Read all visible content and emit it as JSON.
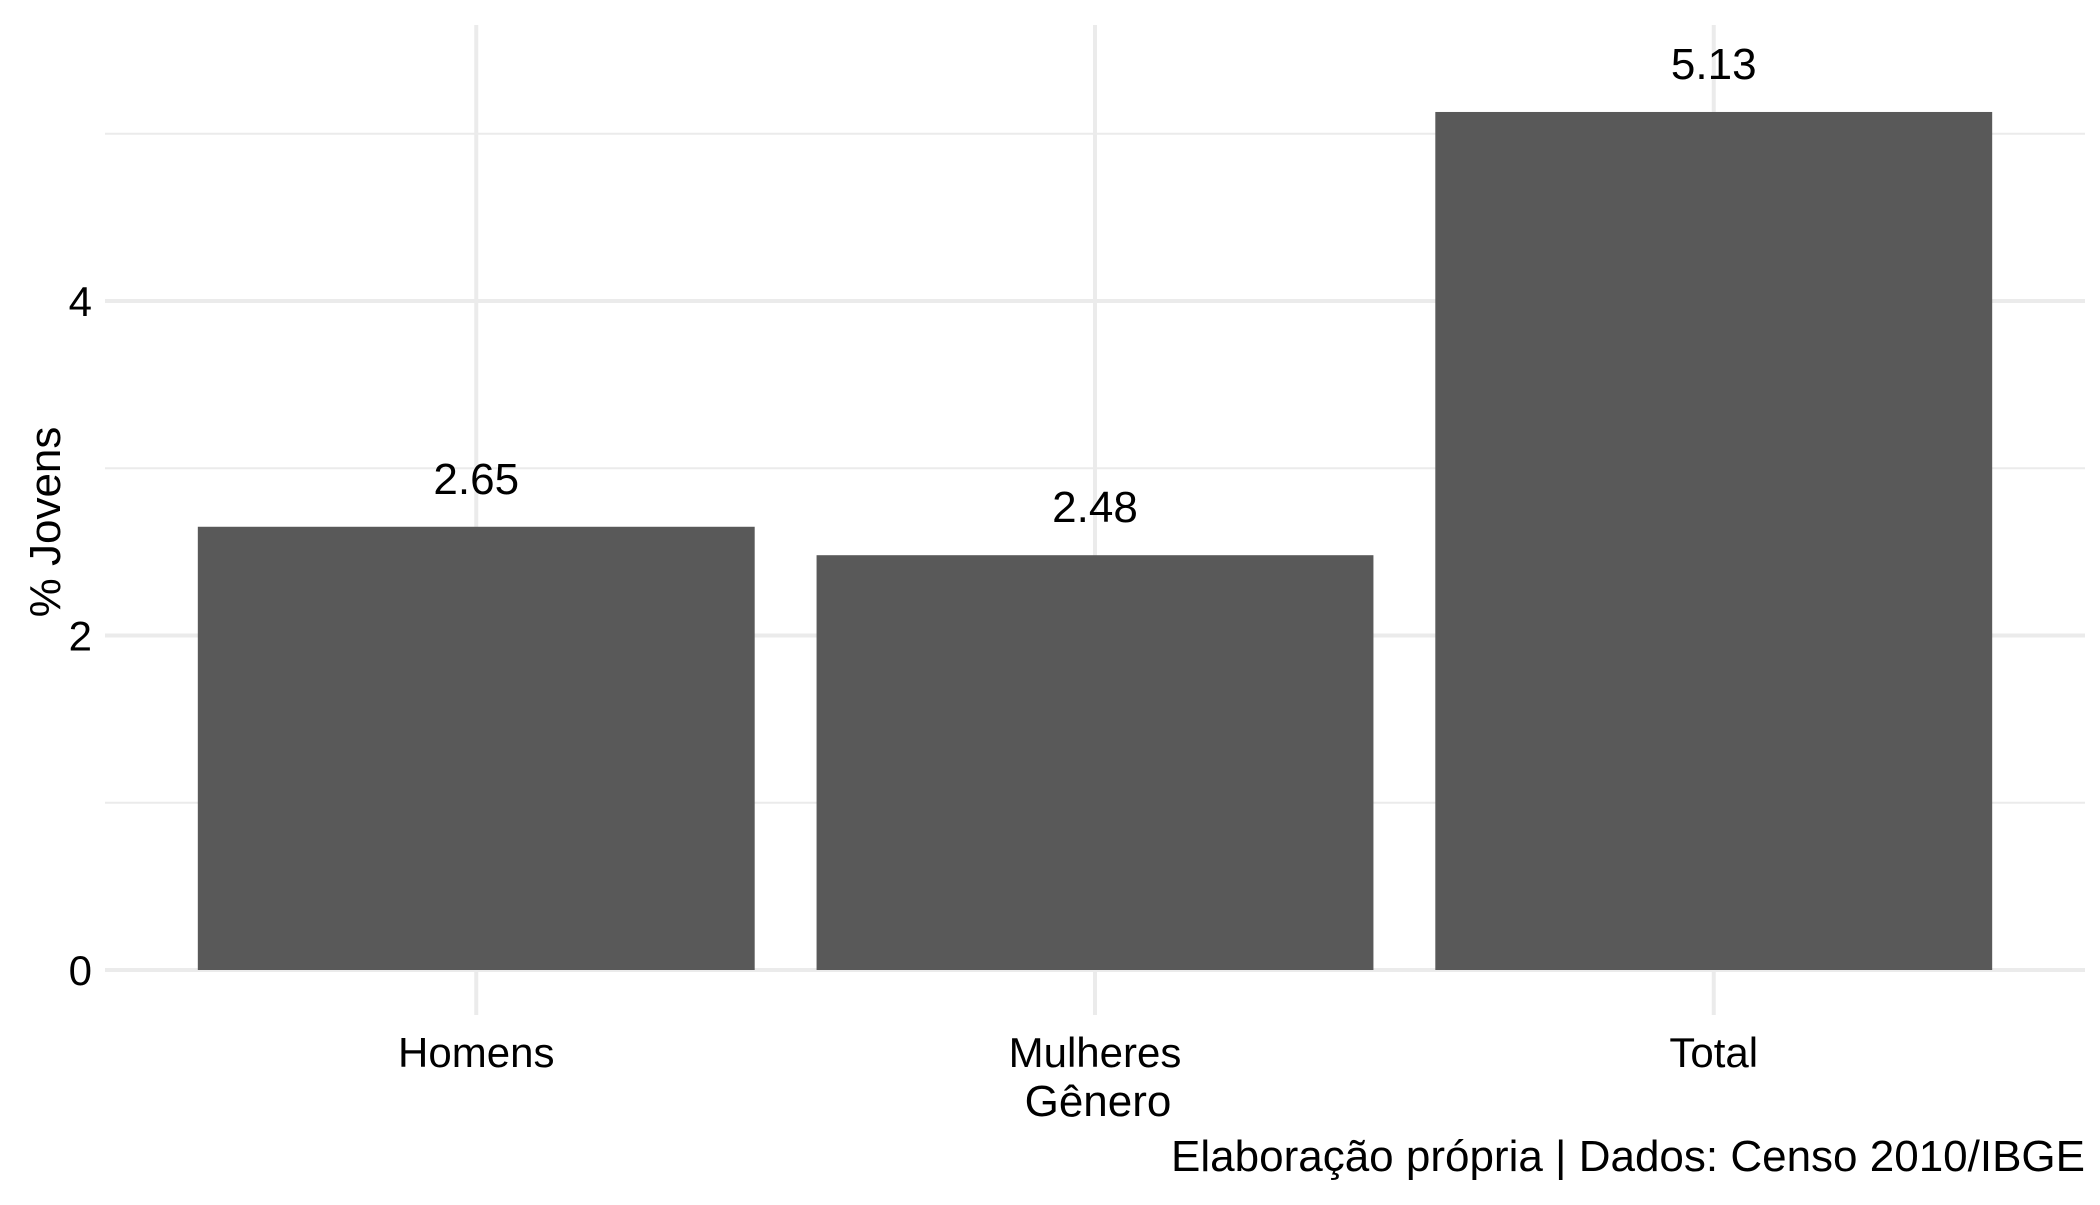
{
  "chart_data": {
    "type": "bar",
    "categories": [
      "Homens",
      "Mulheres",
      "Total"
    ],
    "values": [
      2.65,
      2.48,
      5.13
    ],
    "data_labels": [
      "2.65",
      "2.48",
      "5.13"
    ],
    "title": "",
    "xlabel": "Gênero",
    "ylabel": "% Jovens",
    "ylim": [
      0,
      5.65
    ],
    "y_ticks": [
      0,
      2,
      4
    ],
    "y_tick_labels": [
      "0",
      "2",
      "4"
    ],
    "y_minor_ticks": [
      1,
      3,
      5
    ],
    "grid": true,
    "legend": "none",
    "bar_color": "#595959",
    "grid_color": "#ebebeb",
    "caption": "Elaboração própria | Dados: Censo 2010/IBGE"
  }
}
